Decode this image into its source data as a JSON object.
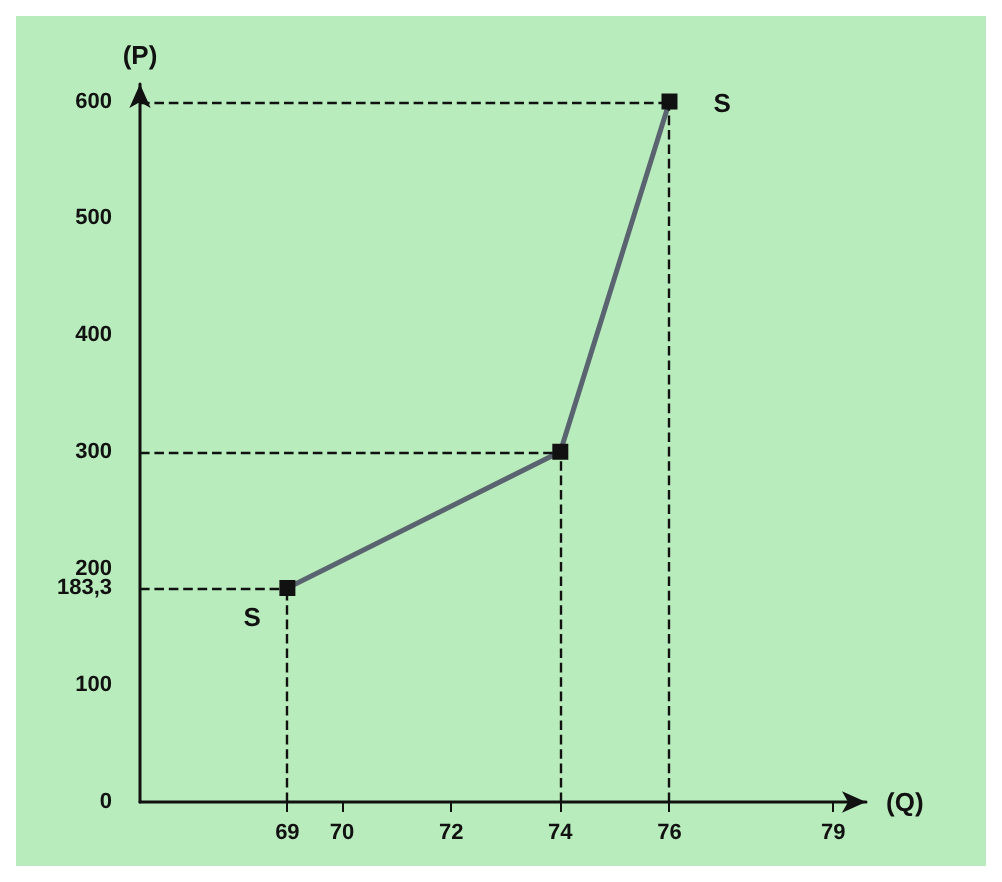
{
  "chart_data": {
    "type": "line",
    "xlabel": "(Q)",
    "ylabel": "(P)",
    "x": [
      69,
      74,
      76
    ],
    "series": [
      {
        "color": "#5a6470",
        "values": [
          183.3,
          300,
          600
        ]
      }
    ],
    "marker": "square",
    "line_style": "solid",
    "grid": false,
    "xlim": [
      66.3,
      79.6
    ],
    "ylim": [
      0,
      615
    ],
    "xticks": [
      69,
      70,
      72,
      74,
      76,
      79
    ],
    "yticks": [
      0,
      100,
      {
        "value": 183.3,
        "label": "183,3"
      },
      200,
      300,
      400,
      500,
      600
    ],
    "ref_lines": [
      {
        "axis": "x",
        "value": 69,
        "line_style": "dashed",
        "color": "#111111"
      },
      {
        "axis": "x",
        "value": 74,
        "line_style": "dashed",
        "color": "#111111"
      },
      {
        "axis": "x",
        "value": 76,
        "line_style": "dashed",
        "color": "#111111"
      },
      {
        "axis": "y",
        "value": 183.3,
        "line_style": "dashed",
        "color": "#111111"
      },
      {
        "axis": "y",
        "value": 300,
        "line_style": "dashed",
        "color": "#111111"
      },
      {
        "axis": "y",
        "value": 600,
        "line_style": "dashed",
        "color": "#111111"
      }
    ],
    "annotations": [
      {
        "text": "S",
        "x": 69,
        "y": 183.3
      },
      {
        "text": "S",
        "x": 76,
        "y": 600
      }
    ]
  }
}
